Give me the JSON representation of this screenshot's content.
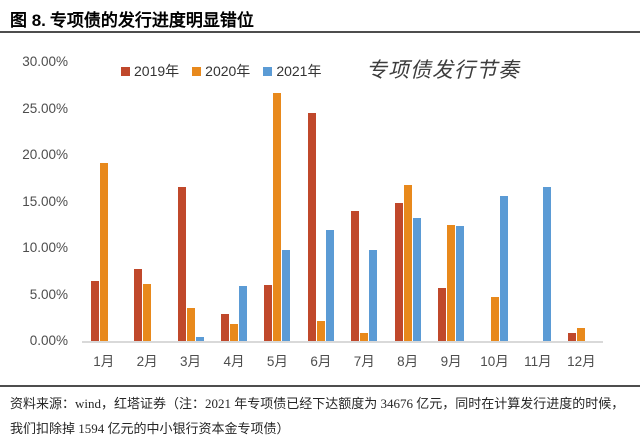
{
  "figure": {
    "label": "图 8.",
    "title": "专项债的发行进度明显错位"
  },
  "chart_data": {
    "type": "bar",
    "annotation": "专项债发行节奏",
    "categories": [
      "1月",
      "2月",
      "3月",
      "4月",
      "5月",
      "6月",
      "7月",
      "8月",
      "9月",
      "10月",
      "11月",
      "12月"
    ],
    "series": [
      {
        "name": "2019年",
        "color": "#C0482B",
        "values": [
          6.5,
          7.7,
          16.6,
          2.9,
          6.0,
          24.5,
          14.0,
          14.8,
          5.7,
          0,
          0,
          0.9
        ]
      },
      {
        "name": "2020年",
        "color": "#E8891C",
        "values": [
          19.1,
          6.1,
          3.5,
          1.8,
          26.7,
          2.1,
          0.9,
          16.8,
          12.5,
          4.7,
          0,
          1.4
        ]
      },
      {
        "name": "2021年",
        "color": "#5B9BD5",
        "values": [
          0,
          0,
          0.4,
          5.9,
          9.8,
          11.9,
          9.8,
          13.2,
          12.4,
          15.6,
          16.6,
          0
        ]
      }
    ],
    "xlabel": "",
    "ylabel": "",
    "ylim": [
      0,
      30
    ],
    "ytick_step": 5,
    "ytick_labels": [
      "0.00%",
      "5.00%",
      "10.00%",
      "15.00%",
      "20.00%",
      "25.00%",
      "30.00%"
    ],
    "grid": false,
    "legend_position": "top-left",
    "plot_background": "#ffffff",
    "baseline_color": "#d9d9d9"
  },
  "footer": {
    "source_note": "资料来源：wind，红塔证券（注：2021 年专项债已经下达额度为 34676 亿元，同时在计算发行进度的时候，我们扣除掉 1594 亿元的中小银行资本金专项债）"
  }
}
